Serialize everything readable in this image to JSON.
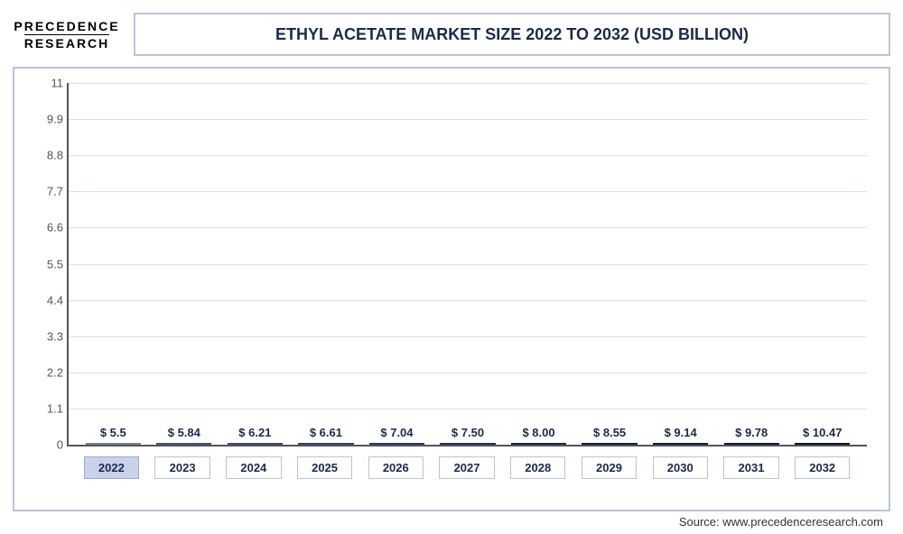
{
  "logo": {
    "line1": "PRECEDENCE",
    "line2": "RESEARCH"
  },
  "title": "ETHYL ACETATE MARKET SIZE 2022 TO 2032 (USD BILLION)",
  "title_fontsize": 18,
  "source": "Source: www.precedenceresearch.com",
  "chart": {
    "type": "bar",
    "categories": [
      "2022",
      "2023",
      "2024",
      "2025",
      "2026",
      "2027",
      "2028",
      "2029",
      "2030",
      "2031",
      "2032"
    ],
    "values": [
      5.5,
      5.84,
      6.21,
      6.61,
      7.04,
      7.5,
      8.0,
      8.55,
      9.14,
      9.78,
      10.47
    ],
    "value_labels": [
      "$ 5.5",
      "$ 5.84",
      "$ 6.21",
      "$ 6.61",
      "$ 7.04",
      "$ 7.50",
      "$ 8.00",
      "$ 8.55",
      "$ 9.14",
      "$ 9.78",
      "$ 10.47"
    ],
    "bar_colors": [
      "#b6c2e3",
      "#6b7ab1",
      "#5f72ae",
      "#4d62a4",
      "#3f579d",
      "#324b92",
      "#24396f",
      "#1f3366",
      "#1a2c5b",
      "#172751",
      "#122147"
    ],
    "y_ticks": [
      0,
      1.1,
      2.2,
      3.3,
      4.4,
      5.5,
      6.6,
      7.7,
      8.8,
      9.9,
      11
    ],
    "ylim": [
      0,
      11
    ],
    "grid_color": "#d9dee9",
    "axis_color": "#555555",
    "frame_border_color": "#b9c3d9",
    "background_color": "#ffffff",
    "value_label_fontsize": 13,
    "tick_label_fontsize": 13,
    "bar_width": 0.78
  }
}
